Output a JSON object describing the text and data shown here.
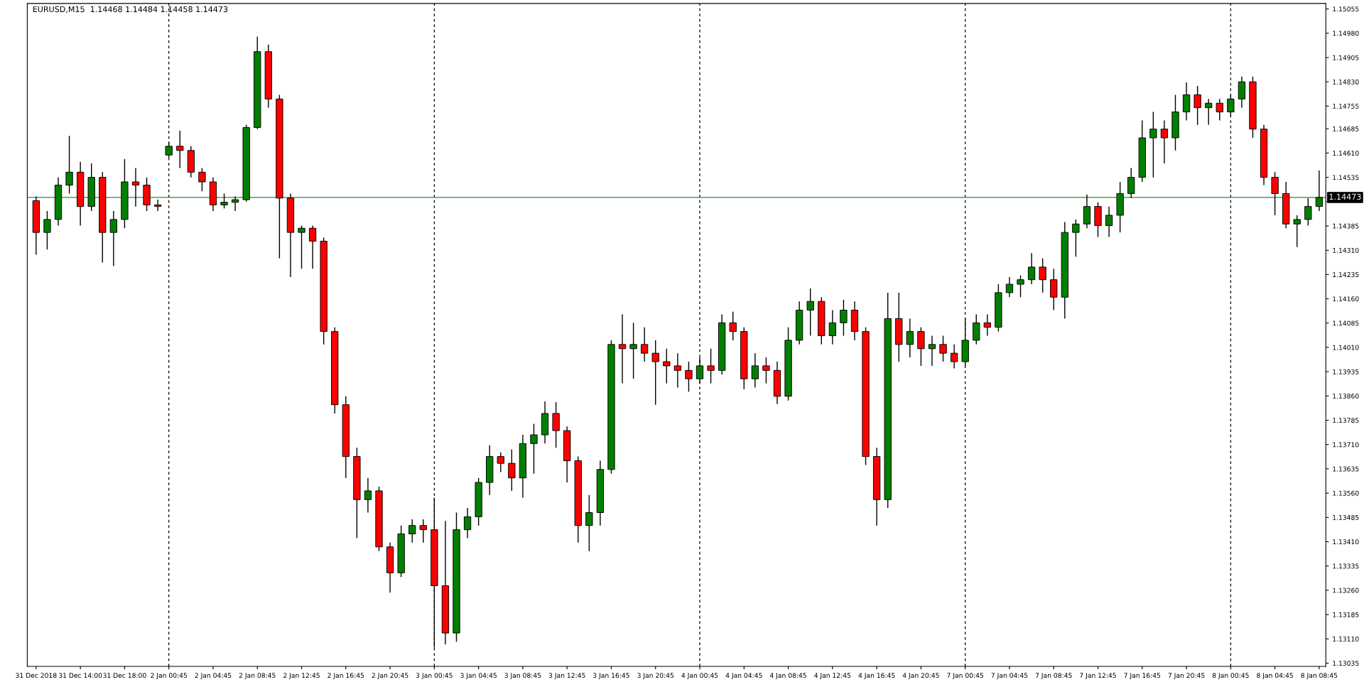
{
  "chart_data": {
    "type": "candlestick",
    "title": "EURUSD,M15  1.14468 1.14484 1.14458 1.14473",
    "colors": [
      "#ff0000",
      "#008000",
      "#008000",
      "#008000",
      "#ff0000",
      "#008000",
      "#ff0000",
      "#008000",
      "#008000",
      "#ff0000",
      "#ff0000",
      "#ff0000",
      "#008000",
      "#ff0000",
      "#ff0000",
      "#ff0000",
      "#ff0000",
      "#008000",
      "#008000",
      "#008000",
      "#008000",
      "#ff0000",
      "#ff0000",
      "#ff0000",
      "#008000",
      "#ff0000",
      "#ff0000",
      "#ff0000",
      "#ff0000",
      "#ff0000",
      "#008000",
      "#ff0000",
      "#ff0000",
      "#008000",
      "#008000",
      "#ff0000",
      "#ff0000",
      "#ff0000",
      "#008000",
      "#008000",
      "#008000",
      "#008000",
      "#ff0000",
      "#ff0000",
      "#008000",
      "#008000",
      "#008000",
      "#ff0000",
      "#ff0000",
      "#ff0000",
      "#008000",
      "#008000",
      "#008000",
      "#ff0000",
      "#008000",
      "#ff0000",
      "#ff0000",
      "#ff0000",
      "#ff0000",
      "#ff0000",
      "#008000",
      "#ff0000",
      "#008000",
      "#ff0000",
      "#ff0000",
      "#008000",
      "#ff0000",
      "#ff0000",
      "#008000",
      "#008000",
      "#008000",
      "#ff0000",
      "#008000",
      "#008000",
      "#ff0000",
      "#ff0000",
      "#ff0000",
      "#008000",
      "#ff0000",
      "#008000",
      "#ff0000",
      "#008000",
      "#ff0000",
      "#ff0000",
      "#008000",
      "#008000",
      "#ff0000",
      "#008000",
      "#008000",
      "#008000",
      "#008000",
      "#ff0000",
      "#ff0000",
      "#008000",
      "#008000",
      "#008000",
      "#ff0000",
      "#008000",
      "#008000",
      "#008000",
      "#008000",
      "#008000",
      "#ff0000",
      "#008000",
      "#008000",
      "#ff0000",
      "#008000",
      "#ff0000",
      "#008000",
      "#008000",
      "#ff0000",
      "#ff0000",
      "#ff0000",
      "#ff0000",
      "#008000",
      "#008000",
      "#008000"
    ],
    "categories": [
      "31 Dec 2018",
      null,
      null,
      null,
      "31 Dec 14:00",
      null,
      null,
      null,
      "31 Dec 18:00",
      null,
      null,
      null,
      "2 Jan 00:45",
      null,
      null,
      null,
      "2 Jan 04:45",
      null,
      null,
      null,
      "2 Jan 08:45",
      null,
      null,
      null,
      "2 Jan 12:45",
      null,
      null,
      null,
      "2 Jan 16:45",
      null,
      null,
      null,
      "2 Jan 20:45",
      null,
      null,
      null,
      "3 Jan 00:45",
      null,
      null,
      null,
      "3 Jan 04:45",
      null,
      null,
      null,
      "3 Jan 08:45",
      null,
      null,
      null,
      "3 Jan 12:45",
      null,
      null,
      null,
      "3 Jan 16:45",
      null,
      null,
      null,
      "3 Jan 20:45",
      null,
      null,
      null,
      "4 Jan 00:45",
      null,
      null,
      null,
      "4 Jan 04:45",
      null,
      null,
      null,
      "4 Jan 08:45",
      null,
      null,
      null,
      "4 Jan 12:45",
      null,
      null,
      null,
      "4 Jan 16:45",
      null,
      null,
      null,
      "4 Jan 20:45",
      null,
      null,
      null,
      "7 Jan 00:45",
      null,
      null,
      null,
      "7 Jan 04:45",
      null,
      null,
      null,
      "7 Jan 08:45",
      null,
      null,
      null,
      "7 Jan 12:45",
      null,
      null,
      null,
      "7 Jan 16:45",
      null,
      null,
      null,
      "7 Jan 20:45",
      null,
      null,
      null,
      "8 Jan 00:45",
      null,
      null,
      null,
      "8 Jan 04:45",
      null,
      null,
      null,
      "8 Jan 08:45"
    ],
    "ohlc": [
      [
        1.14463,
        1.14476,
        1.14296,
        1.14365
      ],
      [
        1.14365,
        1.14431,
        1.14312,
        1.14405
      ],
      [
        1.14405,
        1.14535,
        1.14386,
        1.14511
      ],
      [
        1.14511,
        1.14663,
        1.14485,
        1.14551
      ],
      [
        1.14551,
        1.14583,
        1.14386,
        1.14445
      ],
      [
        1.14445,
        1.14578,
        1.14431,
        1.14535
      ],
      [
        1.14535,
        1.14551,
        1.14272,
        1.14365
      ],
      [
        1.14365,
        1.14431,
        1.14261,
        1.14405
      ],
      [
        1.14405,
        1.14591,
        1.14378,
        1.14521
      ],
      [
        1.14521,
        1.14564,
        1.14445,
        1.14511
      ],
      [
        1.14511,
        1.14535,
        1.14431,
        1.1445
      ],
      [
        1.1445,
        1.14466,
        1.14431,
        1.14445
      ],
      [
        1.14604,
        1.14644,
        1.14596,
        1.14631
      ],
      [
        1.14631,
        1.14679,
        1.14564,
        1.14618
      ],
      [
        1.14618,
        1.14631,
        1.14535,
        1.14551
      ],
      [
        1.14551,
        1.14564,
        1.14492,
        1.14521
      ],
      [
        1.14521,
        1.14535,
        1.14431,
        1.1445
      ],
      [
        1.1445,
        1.14485,
        1.14439,
        1.14458
      ],
      [
        1.14458,
        1.14476,
        1.14431,
        1.14466
      ],
      [
        1.14466,
        1.14697,
        1.1446,
        1.14689
      ],
      [
        1.14689,
        1.14969,
        1.14684,
        1.14923
      ],
      [
        1.14923,
        1.14945,
        1.1475,
        1.14777
      ],
      [
        1.14777,
        1.1479,
        1.14285,
        1.14471
      ],
      [
        1.14471,
        1.14485,
        1.14227,
        1.14365
      ],
      [
        1.14365,
        1.14386,
        1.14253,
        1.14378
      ],
      [
        1.14378,
        1.14386,
        1.14253,
        1.14338
      ],
      [
        1.14338,
        1.14349,
        1.14019,
        1.14059
      ],
      [
        1.14059,
        1.14072,
        1.13806,
        1.13833
      ],
      [
        1.13833,
        1.13859,
        1.13607,
        1.13673
      ],
      [
        1.13673,
        1.137,
        1.13421,
        1.1354
      ],
      [
        1.1354,
        1.13607,
        1.135,
        1.13567
      ],
      [
        1.13567,
        1.1358,
        1.13381,
        1.13394
      ],
      [
        1.13394,
        1.13407,
        1.13253,
        1.13314
      ],
      [
        1.13314,
        1.1346,
        1.13301,
        1.13434
      ],
      [
        1.13434,
        1.13479,
        1.13407,
        1.1346
      ],
      [
        1.1346,
        1.13479,
        1.13407,
        1.13447
      ],
      [
        1.13447,
        1.13546,
        1.13083,
        1.13274
      ],
      [
        1.13274,
        1.13474,
        1.13093,
        1.13128
      ],
      [
        1.13128,
        1.135,
        1.13101,
        1.13447
      ],
      [
        1.13447,
        1.13514,
        1.13421,
        1.13487
      ],
      [
        1.13487,
        1.13607,
        1.1346,
        1.13593
      ],
      [
        1.13593,
        1.13708,
        1.13554,
        1.13673
      ],
      [
        1.13673,
        1.13686,
        1.13625,
        1.13652
      ],
      [
        1.13652,
        1.13695,
        1.13567,
        1.13607
      ],
      [
        1.13607,
        1.1374,
        1.13546,
        1.13713
      ],
      [
        1.13713,
        1.13774,
        1.1362,
        1.1374
      ],
      [
        1.1374,
        1.13843,
        1.13713,
        1.13806
      ],
      [
        1.13806,
        1.13841,
        1.137,
        1.13753
      ],
      [
        1.13753,
        1.13766,
        1.13593,
        1.1366
      ],
      [
        1.1366,
        1.13673,
        1.13407,
        1.1346
      ],
      [
        1.1346,
        1.13554,
        1.13381,
        1.135
      ],
      [
        1.135,
        1.1366,
        1.1346,
        1.13633
      ],
      [
        1.13633,
        1.14032,
        1.1362,
        1.14019
      ],
      [
        1.14019,
        1.14112,
        1.13899,
        1.14006
      ],
      [
        1.14006,
        1.14086,
        1.13913,
        1.14019
      ],
      [
        1.14019,
        1.14072,
        1.13966,
        1.13992
      ],
      [
        1.13992,
        1.14032,
        1.13833,
        1.13966
      ],
      [
        1.13966,
        1.14006,
        1.13899,
        1.13953
      ],
      [
        1.13953,
        1.13992,
        1.13886,
        1.13939
      ],
      [
        1.13939,
        1.13966,
        1.13873,
        1.13913
      ],
      [
        1.13913,
        1.13979,
        1.13899,
        1.13953
      ],
      [
        1.13953,
        1.14006,
        1.13899,
        1.13939
      ],
      [
        1.13939,
        1.14112,
        1.13926,
        1.14086
      ],
      [
        1.14086,
        1.1412,
        1.14032,
        1.14059
      ],
      [
        1.14059,
        1.14072,
        1.13881,
        1.13913
      ],
      [
        1.13913,
        1.13992,
        1.13886,
        1.13953
      ],
      [
        1.13953,
        1.13979,
        1.13899,
        1.13939
      ],
      [
        1.13939,
        1.13966,
        1.13835,
        1.13859
      ],
      [
        1.13859,
        1.14072,
        1.13846,
        1.14032
      ],
      [
        1.14032,
        1.14152,
        1.14019,
        1.14125
      ],
      [
        1.14125,
        1.14192,
        1.14046,
        1.14152
      ],
      [
        1.14152,
        1.14165,
        1.14019,
        1.14046
      ],
      [
        1.14046,
        1.14125,
        1.14019,
        1.14086
      ],
      [
        1.14086,
        1.14157,
        1.14046,
        1.14125
      ],
      [
        1.14125,
        1.14152,
        1.14032,
        1.14059
      ],
      [
        1.14059,
        1.14072,
        1.13647,
        1.13673
      ],
      [
        1.13673,
        1.137,
        1.1346,
        1.1354
      ],
      [
        1.1354,
        1.14179,
        1.13514,
        1.14099
      ],
      [
        1.14099,
        1.14179,
        1.13966,
        1.14019
      ],
      [
        1.14019,
        1.14099,
        1.13979,
        1.14059
      ],
      [
        1.14059,
        1.14072,
        1.13953,
        1.14006
      ],
      [
        1.14006,
        1.14046,
        1.13953,
        1.14019
      ],
      [
        1.14019,
        1.14046,
        1.13966,
        1.13992
      ],
      [
        1.13992,
        1.14019,
        1.13945,
        1.13966
      ],
      [
        1.13966,
        1.14099,
        1.13953,
        1.14032
      ],
      [
        1.14032,
        1.14112,
        1.14019,
        1.14086
      ],
      [
        1.14086,
        1.14112,
        1.14046,
        1.14072
      ],
      [
        1.14072,
        1.14205,
        1.14059,
        1.14179
      ],
      [
        1.14179,
        1.14227,
        1.14165,
        1.14205
      ],
      [
        1.14205,
        1.14232,
        1.14165,
        1.14219
      ],
      [
        1.14219,
        1.14301,
        1.14205,
        1.14258
      ],
      [
        1.14258,
        1.14285,
        1.14179,
        1.14219
      ],
      [
        1.14219,
        1.14253,
        1.14125,
        1.14165
      ],
      [
        1.14165,
        1.14397,
        1.14099,
        1.14365
      ],
      [
        1.14365,
        1.14405,
        1.1429,
        1.14391
      ],
      [
        1.14391,
        1.14482,
        1.14378,
        1.14445
      ],
      [
        1.14445,
        1.14458,
        1.14351,
        1.14386
      ],
      [
        1.14386,
        1.14445,
        1.14351,
        1.14418
      ],
      [
        1.14418,
        1.14521,
        1.14365,
        1.14485
      ],
      [
        1.14485,
        1.14564,
        1.14471,
        1.14535
      ],
      [
        1.14535,
        1.14711,
        1.14521,
        1.14657
      ],
      [
        1.14657,
        1.14737,
        1.14535,
        1.14684
      ],
      [
        1.14684,
        1.14711,
        1.14578,
        1.14657
      ],
      [
        1.14657,
        1.1479,
        1.14618,
        1.14737
      ],
      [
        1.14737,
        1.14828,
        1.14711,
        1.1479
      ],
      [
        1.1479,
        1.14817,
        1.14697,
        1.1475
      ],
      [
        1.1475,
        1.14777,
        1.14697,
        1.14764
      ],
      [
        1.14764,
        1.14777,
        1.14711,
        1.14737
      ],
      [
        1.14737,
        1.1479,
        1.14724,
        1.14777
      ],
      [
        1.14777,
        1.14846,
        1.1475,
        1.1483
      ],
      [
        1.1483,
        1.14846,
        1.14657,
        1.14684
      ],
      [
        1.14684,
        1.14697,
        1.14511,
        1.14535
      ],
      [
        1.14535,
        1.14551,
        1.14418,
        1.14485
      ],
      [
        1.14485,
        1.14521,
        1.14378,
        1.14391
      ],
      [
        1.14391,
        1.14418,
        1.1432,
        1.14405
      ],
      [
        1.14405,
        1.14471,
        1.14386,
        1.14445
      ],
      [
        1.14445,
        1.14556,
        1.14431,
        1.14473
      ]
    ],
    "ylim": [
      1.13025,
      1.15072
    ],
    "yticks": [
      {
        "value": 1.15055,
        "label": "1.15055"
      },
      {
        "value": 1.1498,
        "label": "1.14980"
      },
      {
        "value": 1.14905,
        "label": "1.14905"
      },
      {
        "value": 1.1483,
        "label": "1.14830"
      },
      {
        "value": 1.14755,
        "label": "1.14755"
      },
      {
        "value": 1.14685,
        "label": "1.14685"
      },
      {
        "value": 1.1461,
        "label": "1.14610"
      },
      {
        "value": 1.14535,
        "label": "1.14535"
      },
      {
        "value": 1.1446,
        "label": null
      },
      {
        "value": 1.14385,
        "label": "1.14385"
      },
      {
        "value": 1.1431,
        "label": "1.14310"
      },
      {
        "value": 1.14235,
        "label": "1.14235"
      },
      {
        "value": 1.1416,
        "label": "1.14160"
      },
      {
        "value": 1.14085,
        "label": "1.14085"
      },
      {
        "value": 1.1401,
        "label": "1.14010"
      },
      {
        "value": 1.13935,
        "label": "1.13935"
      },
      {
        "value": 1.1386,
        "label": "1.13860"
      },
      {
        "value": 1.13785,
        "label": "1.13785"
      },
      {
        "value": 1.1371,
        "label": "1.13710"
      },
      {
        "value": 1.13635,
        "label": "1.13635"
      },
      {
        "value": 1.1356,
        "label": "1.13560"
      },
      {
        "value": 1.13485,
        "label": "1.13485"
      },
      {
        "value": 1.1341,
        "label": "1.13410"
      },
      {
        "value": 1.13335,
        "label": "1.13335"
      },
      {
        "value": 1.1326,
        "label": "1.13260"
      },
      {
        "value": 1.13185,
        "label": "1.13185"
      },
      {
        "value": 1.1311,
        "label": "1.13110"
      },
      {
        "value": 1.13035,
        "label": "1.13035"
      }
    ],
    "ref_lines": [
      {
        "axis": "y",
        "value": 1.14473,
        "label": "1.14473",
        "color": "#2e8b2e",
        "line_style": "solid"
      },
      {
        "axis": "x",
        "value": "2 Jan 00:45",
        "color": "#000000",
        "line_style": "dashed"
      },
      {
        "axis": "x",
        "value": "3 Jan 00:45",
        "color": "#000000",
        "line_style": "dashed"
      },
      {
        "axis": "x",
        "value": "4 Jan 00:45",
        "color": "#000000",
        "line_style": "dashed"
      },
      {
        "axis": "x",
        "value": "7 Jan 00:45",
        "color": "#000000",
        "line_style": "dashed"
      },
      {
        "axis": "x",
        "value": "8 Jan 00:45",
        "color": "#000000",
        "line_style": "dashed"
      }
    ],
    "grid": false,
    "legend": false
  }
}
